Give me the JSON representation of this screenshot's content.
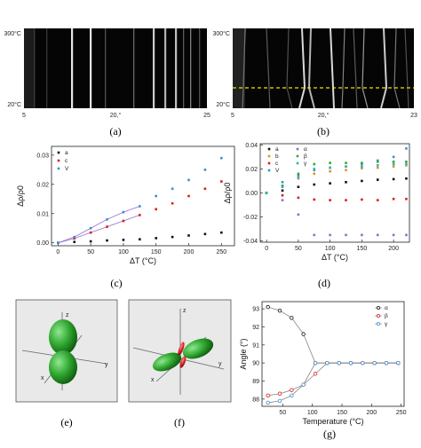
{
  "panels": {
    "a": {
      "caption": "(a)",
      "y_top": "300°C",
      "y_bottom": "20°C",
      "x_left": "5",
      "x_mid": "20,°",
      "x_right": "25"
    },
    "b": {
      "caption": "(b)",
      "y_top": "300°C",
      "y_bottom": "20°C",
      "x_left": "5",
      "x_mid": "20,°",
      "x_right": "23"
    },
    "c": {
      "caption": "(c)"
    },
    "d": {
      "caption": "(d)"
    },
    "e": {
      "caption": "(e)",
      "axis_z": "z",
      "axis_x": "x",
      "axis_y": "y"
    },
    "f": {
      "caption": "(f)",
      "axis_z": "z",
      "axis_x": "x",
      "axis_y": "y"
    },
    "g": {
      "caption": "(g)"
    }
  },
  "colors": {
    "black": "#111111",
    "red": "#e01b1b",
    "blue": "#3a8fd8",
    "orange": "#f08c1a",
    "green": "#3aa33a",
    "teal": "#2bb5b5",
    "violet": "#8a6fd1",
    "lobe_green": "#2fa52f",
    "lobe_red": "#d92020"
  },
  "chart_data": [
    {
      "panel": "c",
      "type": "scatter",
      "xlabel": "ΔT (°C)",
      "ylabel": "Δρ/ρ0",
      "xlim": [
        -10,
        270
      ],
      "ylim": [
        -0.001,
        0.033
      ],
      "xticks": [
        0,
        50,
        100,
        150,
        200,
        250
      ],
      "yticks": [
        0.0,
        0.01,
        0.02,
        0.03
      ],
      "ytick_labels": [
        "0.00",
        "0.01",
        "0.02",
        "0.03"
      ],
      "legend_position": "top-left",
      "series": [
        {
          "name": "a",
          "color": "#111111",
          "x": [
            0,
            25,
            50,
            75,
            100,
            125,
            150,
            175,
            200,
            225,
            250
          ],
          "y": [
            0.0,
            0.0003,
            0.0005,
            0.0008,
            0.001,
            0.0012,
            0.0016,
            0.002,
            0.0025,
            0.003,
            0.0035
          ]
        },
        {
          "name": "c",
          "color": "#e01b1b",
          "x": [
            0,
            25,
            50,
            75,
            100,
            125,
            150,
            175,
            200,
            225,
            250
          ],
          "y": [
            0.0,
            0.0015,
            0.0035,
            0.0055,
            0.0075,
            0.0095,
            0.0115,
            0.0135,
            0.016,
            0.0185,
            0.021
          ]
        },
        {
          "name": "V",
          "color": "#3a8fd8",
          "x": [
            0,
            25,
            50,
            75,
            100,
            125,
            150,
            175,
            200,
            225,
            250
          ],
          "y": [
            0.0,
            0.002,
            0.005,
            0.008,
            0.0105,
            0.0125,
            0.016,
            0.0185,
            0.0215,
            0.025,
            0.029
          ]
        }
      ]
    },
    {
      "panel": "d",
      "type": "scatter",
      "xlabel": "ΔT (°C)",
      "ylabel": "Δρ/ρ0",
      "xlim": [
        -10,
        225
      ],
      "ylim": [
        -0.041,
        0.041
      ],
      "xticks": [
        0,
        50,
        100,
        150,
        200
      ],
      "yticks": [
        -0.04,
        -0.02,
        0.0,
        0.02,
        0.04
      ],
      "ytick_labels": [
        "-0.04",
        "-0.02",
        "0.00",
        "0.02",
        "0.04"
      ],
      "legend_position": "top-left",
      "series": [
        {
          "name": "a",
          "color": "#111111",
          "x": [
            0,
            25,
            50,
            75,
            100,
            125,
            150,
            175,
            200,
            220
          ],
          "y": [
            0.0,
            0.002,
            0.005,
            0.007,
            0.008,
            0.009,
            0.01,
            0.011,
            0.0115,
            0.012
          ]
        },
        {
          "name": "b",
          "color": "#f08c1a",
          "x": [
            0,
            25,
            50,
            75,
            100,
            125,
            150,
            175,
            200,
            220
          ],
          "y": [
            0.0,
            0.006,
            0.012,
            0.016,
            0.018,
            0.019,
            0.0205,
            0.021,
            0.022,
            0.023
          ]
        },
        {
          "name": "c",
          "color": "#e01b1b",
          "x": [
            0,
            25,
            50,
            75,
            100,
            125,
            150,
            175,
            200,
            220
          ],
          "y": [
            0.0,
            -0.002,
            -0.004,
            -0.0055,
            -0.006,
            -0.006,
            -0.0055,
            -0.006,
            -0.005,
            -0.005
          ]
        },
        {
          "name": "V",
          "color": "#3a8fd8",
          "x": [
            0,
            25,
            50,
            75,
            100,
            125,
            150,
            175,
            200,
            220
          ],
          "y": [
            0.0,
            0.009,
            0.016,
            0.019,
            0.021,
            0.022,
            0.024,
            0.027,
            0.03,
            0.037
          ]
        },
        {
          "name": "α",
          "color": "#8a6fd1",
          "x": [
            0,
            25,
            50,
            75,
            100,
            125,
            150,
            175,
            200,
            220
          ],
          "y": [
            0.0,
            -0.006,
            -0.018,
            -0.035,
            -0.035,
            -0.035,
            -0.035,
            -0.035,
            -0.035,
            -0.035
          ]
        },
        {
          "name": "β",
          "color": "#3aa33a",
          "x": [
            0,
            25,
            50,
            75,
            100,
            125,
            150,
            175,
            200,
            220
          ],
          "y": [
            0.0,
            0.006,
            0.015,
            0.024,
            0.025,
            0.025,
            0.025,
            0.026,
            0.026,
            0.026
          ]
        },
        {
          "name": "γ",
          "color": "#2bb5b5",
          "x": [
            0,
            25,
            50,
            75,
            100,
            125,
            150,
            175,
            200,
            220
          ],
          "y": [
            0.0,
            0.005,
            0.013,
            0.02,
            0.021,
            0.022,
            0.022,
            0.023,
            0.024,
            0.024
          ]
        }
      ]
    },
    {
      "panel": "g",
      "type": "line",
      "xlabel": "Temperature (°C)",
      "ylabel": "Angle (°)",
      "xlim": [
        15,
        255
      ],
      "ylim": [
        87.6,
        93.4
      ],
      "xticks": [
        50,
        100,
        150,
        200,
        250
      ],
      "yticks": [
        88,
        89,
        90,
        91,
        92,
        93
      ],
      "legend_position": "top-right",
      "series": [
        {
          "name": "α",
          "color": "#111111",
          "x": [
            25,
            45,
            65,
            85,
            105,
            125,
            145,
            165,
            185,
            205,
            225,
            245
          ],
          "y": [
            93.1,
            92.9,
            92.5,
            91.6,
            90.0,
            90.0,
            90.0,
            90.0,
            90.0,
            90.0,
            90.0,
            90.0
          ]
        },
        {
          "name": "β",
          "color": "#e01b1b",
          "x": [
            25,
            45,
            65,
            85,
            105,
            125,
            145,
            165,
            185,
            205,
            225,
            245
          ],
          "y": [
            88.2,
            88.3,
            88.5,
            88.8,
            89.4,
            90.0,
            90.0,
            90.0,
            90.0,
            90.0,
            90.0,
            90.0
          ]
        },
        {
          "name": "γ",
          "color": "#3a8fd8",
          "x": [
            25,
            45,
            65,
            85,
            105,
            125,
            145,
            165,
            185,
            205,
            225,
            245
          ],
          "y": [
            87.8,
            87.9,
            88.2,
            88.8,
            90.0,
            90.0,
            90.0,
            90.0,
            90.0,
            90.0,
            90.0,
            90.0
          ]
        }
      ]
    }
  ]
}
